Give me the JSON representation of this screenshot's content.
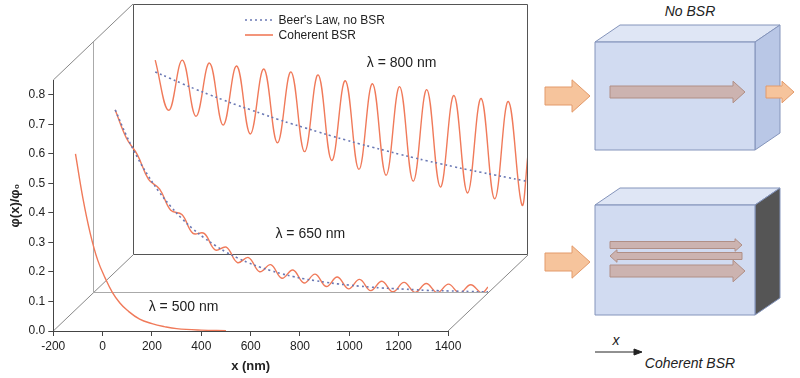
{
  "chart_data": [
    {
      "type": "line",
      "annotation": "λ = 500 nm",
      "x_label": "x (nm)",
      "y_label": "φ(x)/φ₀",
      "x": [
        -110,
        -80,
        -50,
        -20,
        10,
        40,
        70,
        100,
        150,
        200,
        250,
        300,
        400,
        500
      ],
      "series": [
        {
          "color": "#f07a5a",
          "line_style": "solid",
          "values": [
            0.6,
            0.45,
            0.33,
            0.24,
            0.18,
            0.13,
            0.095,
            0.07,
            0.04,
            0.025,
            0.015,
            0.008,
            0.003,
            0.001
          ]
        }
      ],
      "xlim": [
        -200,
        1400
      ],
      "xticks": [
        -200,
        0,
        200,
        400,
        600,
        800,
        1000,
        1200,
        1400
      ],
      "ylim": [
        0,
        0.85
      ],
      "yticks": [
        {
          "value": 0,
          "label": "0.0"
        },
        0.1,
        0.2,
        0.3,
        0.4,
        0.5,
        0.6,
        0.7,
        0.8
      ],
      "grid": false
    },
    {
      "type": "line",
      "annotation": "λ = 650 nm",
      "x": [
        -110,
        -65,
        -20,
        25,
        70,
        115,
        160,
        205,
        250,
        295,
        340,
        385,
        430,
        475,
        520,
        565,
        610,
        655,
        700,
        745,
        790,
        835,
        880,
        925,
        970,
        1015,
        1060,
        1105,
        1150,
        1195,
        1240,
        1285,
        1330,
        1375,
        1400
      ],
      "series": [
        {
          "color": "#6a78b4",
          "line_style": "dotted",
          "values": [
            0.62,
            0.534,
            0.459,
            0.395,
            0.34,
            0.293,
            0.252,
            0.217,
            0.187,
            0.161,
            0.138,
            0.119,
            0.102,
            0.088,
            0.076,
            0.065,
            0.056,
            0.048,
            0.042,
            0.036,
            0.031,
            0.027,
            0.023,
            0.02,
            0.017,
            0.015,
            0.013,
            0.011,
            0.009,
            0.008,
            0.007,
            0.006,
            0.005,
            0.004,
            0.004
          ]
        },
        {
          "color": "#f07a5a",
          "line_style": "solid",
          "values": [
            0.62,
            0.525,
            0.468,
            0.385,
            0.352,
            0.28,
            0.266,
            0.202,
            0.202,
            0.146,
            0.155,
            0.103,
            0.12,
            0.072,
            0.096,
            0.05,
            0.078,
            0.034,
            0.064,
            0.022,
            0.054,
            0.014,
            0.046,
            0.008,
            0.04,
            0.004,
            0.036,
            0.002,
            0.032,
            0.001,
            0.03,
            0,
            0.028,
            0,
            0.02
          ]
        }
      ],
      "xlim": [
        -200,
        1400
      ],
      "ylim": [
        0,
        0.85
      ],
      "tick_labels": false,
      "grid": false
    },
    {
      "type": "line",
      "annotation": "λ = 800 nm",
      "legend": "top",
      "x": [
        -110,
        -55,
        0,
        55,
        110,
        165,
        220,
        275,
        330,
        385,
        440,
        495,
        550,
        605,
        660,
        715,
        770,
        825,
        880,
        935,
        990,
        1045,
        1100,
        1155,
        1210,
        1265,
        1320,
        1375,
        1400
      ],
      "series": [
        {
          "name": "Beer's Law, no BSR",
          "color": "#6a78b4",
          "line_style": "dotted",
          "values": [
            0.62,
            0.6,
            0.58,
            0.561,
            0.543,
            0.525,
            0.508,
            0.492,
            0.476,
            0.46,
            0.445,
            0.431,
            0.417,
            0.403,
            0.39,
            0.377,
            0.365,
            0.353,
            0.341,
            0.33,
            0.319,
            0.309,
            0.299,
            0.289,
            0.28,
            0.271,
            0.262,
            0.253,
            0.249
          ]
        },
        {
          "name": "Coherent BSR",
          "color": "#f07a5a",
          "line_style": "solid",
          "values": [
            0.66,
            0.49,
            0.66,
            0.47,
            0.65,
            0.44,
            0.64,
            0.41,
            0.63,
            0.38,
            0.62,
            0.35,
            0.61,
            0.32,
            0.59,
            0.29,
            0.58,
            0.27,
            0.57,
            0.25,
            0.56,
            0.23,
            0.54,
            0.21,
            0.53,
            0.19,
            0.52,
            0.17,
            0.34
          ]
        }
      ],
      "xlim": [
        -200,
        1400
      ],
      "ylim": [
        0,
        0.85
      ],
      "tick_labels": false,
      "grid": false
    }
  ],
  "diagram": {
    "upper": {
      "title": "No BSR"
    },
    "lower": {
      "title": "Coherent BSR",
      "axis_label": "x"
    }
  }
}
